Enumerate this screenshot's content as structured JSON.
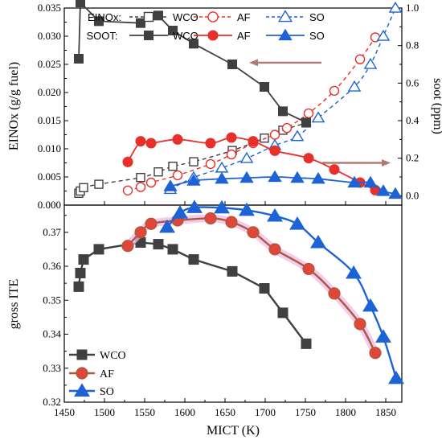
{
  "colors": {
    "WCO": "#404040",
    "AF": "#e8302a",
    "SO": "#1e63d6",
    "AF_bottom": "#a65b3c",
    "AF_bottom_marker": "#e0473a",
    "AF_glow": "#f2b8ea",
    "arrow": "#b07a72"
  },
  "chart_data": [
    {
      "type": "line",
      "panel": "top",
      "xlabel": "",
      "ylabel": "EINOx (g/g fuel)",
      "y2label": "soot (ppm)",
      "xlim": [
        1450,
        1870
      ],
      "ylim": [
        0,
        0.035
      ],
      "y2lim": [
        -0.05,
        1.0
      ],
      "y_ticks": [
        "0.000",
        "0.005",
        "0.010",
        "0.015",
        "0.020",
        "0.025",
        "0.030",
        "0.035"
      ],
      "y2_ticks": [
        "0.0",
        "0.2",
        "0.4",
        "0.6",
        "0.8",
        "1.0"
      ],
      "legend": {
        "rows": [
          {
            "label": "EINOx:",
            "items": [
              "WCO",
              "AF",
              "SO"
            ],
            "style": "dashed-open"
          },
          {
            "label": "SOOT:",
            "items": [
              "WCO",
              "AF",
              "SO"
            ],
            "style": "solid-filled"
          }
        ],
        "placement": "top"
      },
      "series": [
        {
          "name": "WCO",
          "group": "EINOx",
          "axis": "left",
          "marker": "square",
          "x": [
            1468,
            1470,
            1474,
            1493,
            1545,
            1567,
            1585,
            1611,
            1659,
            1699,
            1722,
            1751
          ],
          "y": [
            0.0021,
            0.0025,
            0.0031,
            0.0037,
            0.0049,
            0.0059,
            0.0069,
            0.0077,
            0.0097,
            0.0119,
            0.0133,
            0.0146
          ]
        },
        {
          "name": "AF",
          "group": "EINOx",
          "axis": "left",
          "marker": "circle",
          "x": [
            1529,
            1545,
            1558,
            1591,
            1632,
            1658,
            1685,
            1712,
            1727,
            1754,
            1786,
            1818,
            1837
          ],
          "y": [
            0.0026,
            0.0032,
            0.004,
            0.0053,
            0.0073,
            0.009,
            0.011,
            0.0125,
            0.0137,
            0.0163,
            0.0203,
            0.0259,
            0.0298
          ]
        },
        {
          "name": "SO",
          "group": "EINOx",
          "axis": "left",
          "marker": "triangle",
          "x": [
            1582,
            1611,
            1646,
            1677,
            1712,
            1740,
            1766,
            1811,
            1831,
            1847,
            1862
          ],
          "y": [
            0.0028,
            0.0049,
            0.0066,
            0.0083,
            0.0106,
            0.0122,
            0.0155,
            0.021,
            0.025,
            0.03,
            0.035
          ]
        },
        {
          "name": "WCO",
          "group": "SOOT",
          "axis": "right",
          "marker": "square",
          "x": [
            1468,
            1470,
            1493,
            1545,
            1567,
            1585,
            1611,
            1659,
            1699,
            1722,
            1751
          ],
          "y": [
            0.73,
            1.03,
            0.93,
            0.92,
            0.96,
            0.88,
            0.81,
            0.7,
            0.58,
            0.45,
            0.39
          ]
        },
        {
          "name": "AF",
          "group": "SOOT",
          "axis": "right",
          "marker": "circle",
          "x": [
            1529,
            1545,
            1558,
            1591,
            1632,
            1658,
            1685,
            1712,
            1754,
            1786,
            1818,
            1837
          ],
          "y": [
            0.18,
            0.29,
            0.28,
            0.3,
            0.28,
            0.31,
            0.29,
            0.24,
            0.2,
            0.14,
            0.07,
            0.03
          ]
        },
        {
          "name": "SO",
          "group": "SOOT",
          "axis": "right",
          "marker": "triangle",
          "x": [
            1582,
            1611,
            1646,
            1677,
            1712,
            1740,
            1766,
            1811,
            1831,
            1847,
            1862
          ],
          "y": [
            0.05,
            0.08,
            0.09,
            0.095,
            0.1,
            0.095,
            0.09,
            0.07,
            0.07,
            0.025,
            0.01
          ]
        }
      ],
      "arrows": [
        {
          "direction": "left",
          "x_from": 1770,
          "x_to": 1680,
          "y": 0.0253,
          "axis": "left"
        },
        {
          "direction": "right",
          "x_from": 1771,
          "x_to": 1856,
          "y": 0.0075,
          "axis": "left"
        }
      ]
    },
    {
      "type": "line",
      "panel": "bottom",
      "xlabel": "MICT (K)",
      "ylabel": "gross ITE",
      "xlim": [
        1450,
        1870
      ],
      "ylim": [
        0.32,
        0.378
      ],
      "x_ticks": [
        "1450",
        "1500",
        "1550",
        "1600",
        "1650",
        "1700",
        "1750",
        "1800",
        "1850"
      ],
      "y_ticks": [
        "0.32",
        "0.33",
        "0.34",
        "0.35",
        "0.36",
        "0.37"
      ],
      "legend": {
        "items": [
          "WCO",
          "AF",
          "SO"
        ],
        "placement": "bottom-left"
      },
      "series": [
        {
          "name": "WCO",
          "marker": "square",
          "x": [
            1468,
            1470,
            1474,
            1493,
            1545,
            1567,
            1585,
            1611,
            1659,
            1699,
            1722,
            1751
          ],
          "y": [
            0.354,
            0.358,
            0.362,
            0.365,
            0.367,
            0.3665,
            0.365,
            0.362,
            0.3585,
            0.3535,
            0.3463,
            0.3372
          ]
        },
        {
          "name": "AF",
          "marker": "circle",
          "x": [
            1529,
            1545,
            1558,
            1591,
            1632,
            1658,
            1685,
            1712,
            1754,
            1786,
            1818,
            1837
          ],
          "y": [
            0.366,
            0.37,
            0.3725,
            0.3735,
            0.3741,
            0.373,
            0.37,
            0.365,
            0.3592,
            0.352,
            0.343,
            0.3345
          ]
        },
        {
          "name": "SO",
          "marker": "triangle",
          "x": [
            1578,
            1594,
            1612,
            1646,
            1677,
            1712,
            1740,
            1766,
            1810,
            1831,
            1847,
            1863
          ],
          "y": [
            0.3715,
            0.3757,
            0.3773,
            0.3772,
            0.3765,
            0.3748,
            0.3724,
            0.367,
            0.358,
            0.3483,
            0.3392,
            0.327
          ]
        }
      ]
    }
  ]
}
